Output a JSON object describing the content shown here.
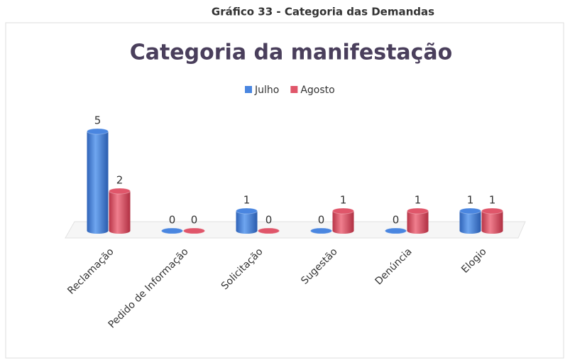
{
  "caption": "Gráfico 33 - Categoria das Demandas",
  "chart_data": {
    "type": "bar3d",
    "title": "Categoria da manifestação",
    "categories": [
      "Reclamação",
      "Pedido de Informação",
      "Solicitação",
      "Sugestão",
      "Denúncia",
      "Elogio"
    ],
    "series": [
      {
        "name": "Julho",
        "color": "#4a86e0",
        "values": [
          5,
          0,
          1,
          0,
          0,
          1
        ]
      },
      {
        "name": "Agosto",
        "color": "#e0566a",
        "values": [
          2,
          0,
          0,
          1,
          1,
          1
        ]
      }
    ],
    "legend": "top"
  }
}
